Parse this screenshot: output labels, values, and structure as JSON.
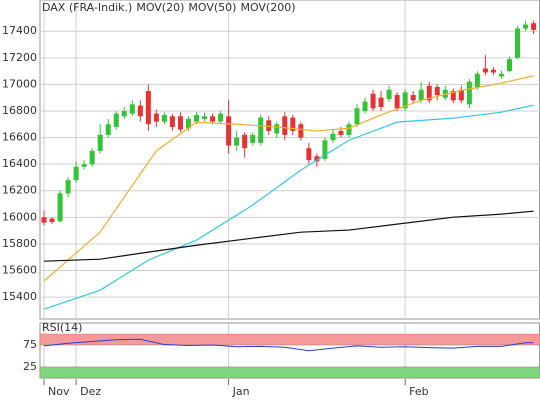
{
  "chart_data": [
    {
      "type": "candlestick",
      "name": "DAX (FRA-Indik.)",
      "name_color": "#e8603c",
      "up_color": "#33c433",
      "down_color": "#e83232",
      "open": [
        16000,
        15990,
        15970,
        16180,
        16280,
        16380,
        16400,
        16500,
        16620,
        16680,
        16760,
        16780,
        16840,
        16950,
        16780,
        16720,
        16760,
        16760,
        16670,
        16720,
        16740,
        16760,
        16720,
        16760,
        16540,
        16620,
        16560,
        16560,
        16730,
        16630,
        16760,
        16750,
        16700,
        16520,
        16460,
        16440,
        16580,
        16650,
        16620,
        16700,
        16800,
        16930,
        16900,
        16890,
        16920,
        16820,
        16920,
        16880,
        16990,
        16980,
        16900,
        16950,
        16960,
        16850,
        16980,
        17120,
        17110,
        17060,
        17100,
        17200,
        17420,
        17460
      ],
      "high": [
        16050,
        16000,
        16200,
        16300,
        16420,
        16430,
        16520,
        16700,
        16740,
        16800,
        16830,
        16880,
        16880,
        17000,
        16810,
        16790,
        16780,
        16790,
        16760,
        16790,
        16790,
        16780,
        16800,
        16880,
        16650,
        16640,
        16640,
        16770,
        16760,
        16720,
        16790,
        16770,
        16720,
        16560,
        16480,
        16600,
        16660,
        16680,
        16720,
        16850,
        16900,
        16960,
        16950,
        16990,
        16940,
        16960,
        16950,
        17020,
        17020,
        17000,
        16990,
        16970,
        16990,
        17040,
        17100,
        17220,
        17130,
        17100,
        17210,
        17440,
        17480,
        17480
      ],
      "low": [
        15940,
        15950,
        15960,
        16150,
        16260,
        16360,
        16380,
        16480,
        16600,
        16660,
        16740,
        16760,
        16720,
        16650,
        16680,
        16700,
        16650,
        16640,
        16650,
        16700,
        16720,
        16700,
        16700,
        16480,
        16500,
        16450,
        16540,
        16540,
        16620,
        16600,
        16580,
        16620,
        16580,
        16400,
        16380,
        16420,
        16560,
        16600,
        16600,
        16680,
        16780,
        16800,
        16800,
        16870,
        16800,
        16800,
        16860,
        16860,
        16860,
        16880,
        16880,
        16860,
        16860,
        16820,
        16960,
        17070,
        17070,
        17040,
        17090,
        17190,
        17400,
        17380
      ],
      "close": [
        15960,
        15965,
        16180,
        16280,
        16380,
        16400,
        16500,
        16620,
        16700,
        16780,
        16800,
        16850,
        16760,
        16700,
        16720,
        16770,
        16680,
        16660,
        16740,
        16770,
        16760,
        16720,
        16780,
        16540,
        16600,
        16520,
        16620,
        16750,
        16650,
        16700,
        16620,
        16650,
        16600,
        16430,
        16420,
        16580,
        16630,
        16620,
        16700,
        16820,
        16870,
        16820,
        16830,
        16960,
        16820,
        16940,
        16880,
        16960,
        16880,
        16920,
        16960,
        16880,
        16880,
        17020,
        17080,
        17090,
        17090,
        17080,
        17190,
        17420,
        17450,
        17410
      ],
      "overlays": [
        {
          "name": "MOV(20)",
          "color": "#f0b030",
          "x": [
            0,
            7,
            11,
            14,
            19,
            24,
            29,
            34,
            38,
            42,
            47,
            52,
            57,
            61
          ],
          "values": [
            15520,
            15890,
            16240,
            16500,
            16715,
            16700,
            16680,
            16650,
            16670,
            16770,
            16880,
            16955,
            17010,
            17065
          ]
        },
        {
          "name": "MOV(50)",
          "color": "#33c8e8",
          "x": [
            0,
            7,
            13,
            19,
            26,
            32,
            38,
            44,
            51,
            57,
            61
          ],
          "values": [
            15309,
            15452,
            15678,
            15828,
            16092,
            16355,
            16580,
            16716,
            16746,
            16791,
            16844
          ]
        },
        {
          "name": "MOV(200)",
          "color": "#111111",
          "x": [
            0,
            7,
            13,
            19,
            26,
            32,
            38,
            44,
            51,
            57,
            61
          ],
          "values": [
            15670,
            15685,
            15738,
            15790,
            15843,
            15888,
            15904,
            15949,
            16001,
            16024,
            16046
          ]
        }
      ],
      "xlim": [
        -0.5,
        61.8
      ],
      "xticks": [
        {
          "value": 0,
          "label": "Nov"
        },
        {
          "value": 4,
          "label": "Dez"
        },
        {
          "value": 23,
          "label": "Jan"
        },
        {
          "value": 45,
          "label": "Feb"
        }
      ],
      "ylim": [
        15235,
        17635
      ],
      "yticks": [
        15400,
        15600,
        15800,
        16000,
        16200,
        16400,
        16600,
        16800,
        17000,
        17200,
        17400
      ],
      "grid": true
    },
    {
      "type": "line",
      "title": "RSI(14)",
      "color": "#2b3fd0",
      "x": [
        0,
        3,
        6,
        9,
        12,
        15,
        18,
        21,
        24,
        27,
        30,
        33,
        36,
        39,
        42,
        45,
        48,
        51,
        54,
        57,
        60,
        61
      ],
      "values": [
        73,
        79,
        83,
        87,
        88,
        76,
        74,
        75,
        71,
        72,
        70,
        62,
        68,
        73,
        70,
        71,
        69,
        68,
        72,
        72,
        80,
        80
      ],
      "xlim": [
        -0.5,
        61.8
      ],
      "ylim": [
        0,
        125
      ],
      "yticks": [
        25,
        75
      ],
      "zones": [
        {
          "from": 75,
          "to": 100,
          "color": "#f49a9a"
        },
        {
          "from": 0,
          "to": 25,
          "color": "#7ed67e"
        }
      ]
    }
  ]
}
